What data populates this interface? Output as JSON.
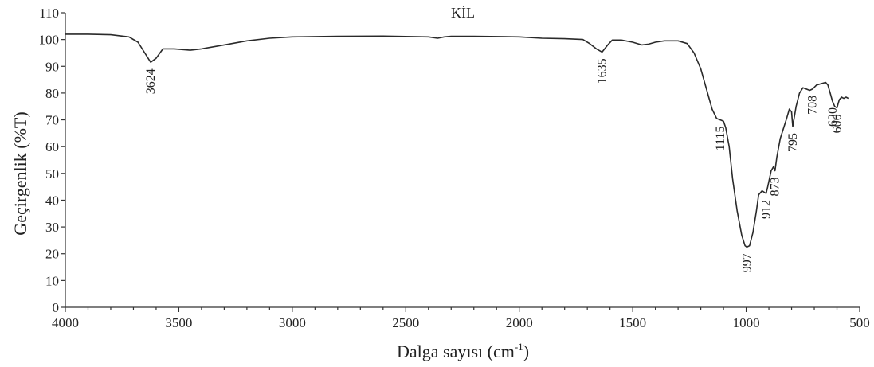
{
  "chart_data": {
    "type": "line",
    "title": "KİL",
    "xlabel": "Dalga sayısı (cm",
    "xlabel_sup": "-1",
    "xlabel_close": ")",
    "ylabel": "Geçirgenlik (%T)",
    "xlim": [
      4000,
      500
    ],
    "ylim": [
      0,
      110
    ],
    "x_ticks": [
      "4000",
      "3500",
      "3000",
      "2500",
      "2000",
      "1500",
      "1000",
      "500"
    ],
    "y_ticks": [
      "0",
      "10",
      "20",
      "30",
      "40",
      "50",
      "60",
      "70",
      "80",
      "90",
      "100",
      "110"
    ],
    "grid": false,
    "series": [
      {
        "x": [
          4000,
          3900,
          3800,
          3720,
          3680,
          3650,
          3624,
          3600,
          3570,
          3520,
          3450,
          3400,
          3300,
          3200,
          3100,
          3000,
          2800,
          2600,
          2400,
          2360,
          2330,
          2300,
          2200,
          2000,
          1900,
          1800,
          1720,
          1690,
          1660,
          1635,
          1610,
          1590,
          1550,
          1500,
          1460,
          1430,
          1400,
          1360,
          1300,
          1260,
          1230,
          1200,
          1170,
          1150,
          1130,
          1115,
          1100,
          1090,
          1075,
          1060,
          1040,
          1020,
          1005,
          997,
          985,
          970,
          955,
          945,
          930,
          912,
          905,
          890,
          880,
          873,
          865,
          850,
          835,
          820,
          810,
          800,
          795,
          790,
          780,
          765,
          750,
          735,
          720,
          708,
          690,
          670,
          650,
          640,
          630,
          620,
          610,
          600,
          590,
          580,
          570,
          560,
          550
        ],
        "y": [
          102,
          102,
          101.8,
          101,
          99,
          95,
          91.5,
          93,
          96.5,
          96.5,
          96,
          96.5,
          98,
          99.5,
          100.5,
          101,
          101.2,
          101.3,
          101,
          100.5,
          101,
          101.2,
          101.2,
          101,
          100.5,
          100.3,
          100,
          98.5,
          96.5,
          95.3,
          98,
          99.8,
          99.8,
          99,
          98,
          98.3,
          99,
          99.5,
          99.5,
          98.5,
          95,
          89,
          80,
          74,
          70.5,
          70,
          69.5,
          67,
          60,
          48,
          36,
          27,
          23,
          22.5,
          23,
          28,
          36,
          42,
          43.5,
          42.5,
          45,
          51,
          52.5,
          51,
          56,
          63,
          67,
          71,
          74,
          73,
          67.5,
          70,
          75,
          80,
          82,
          81.5,
          81,
          81.5,
          83,
          83.5,
          84,
          83,
          80,
          77,
          75,
          74.5,
          77.5,
          78.5,
          78,
          78.5,
          78
        ]
      }
    ],
    "annotations": [
      {
        "text": "3624",
        "x": 3624,
        "y": 91.5
      },
      {
        "text": "1635",
        "x": 1635,
        "y": 95.3
      },
      {
        "text": "1115",
        "x": 1115,
        "y": 70
      },
      {
        "text": "997",
        "x": 997,
        "y": 22.5
      },
      {
        "text": "912",
        "x": 912,
        "y": 42.5
      },
      {
        "text": "873",
        "x": 873,
        "y": 51
      },
      {
        "text": "795",
        "x": 795,
        "y": 67.5
      },
      {
        "text": "708",
        "x": 708,
        "y": 81.5
      },
      {
        "text": "620",
        "x": 620,
        "y": 77
      },
      {
        "text": "600",
        "x": 600,
        "y": 74.5
      }
    ],
    "colors": {
      "line": "#2a2a2a",
      "axis": "#333333"
    }
  }
}
